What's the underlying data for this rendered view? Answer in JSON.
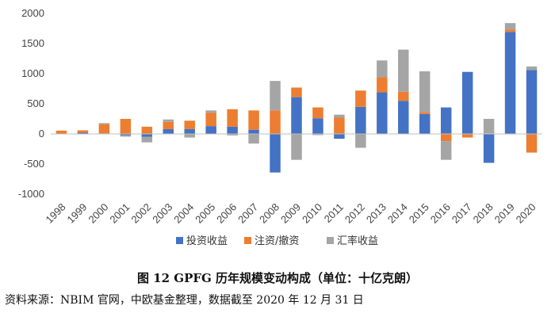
{
  "chart_data": {
    "type": "bar",
    "stacked": true,
    "title": "图 12   GPFG 历年规模变动构成（单位：十亿克朗）",
    "xlabel": "",
    "ylabel": "",
    "ylim": [
      -1000,
      2000
    ],
    "yticks": [
      -1000,
      -500,
      0,
      500,
      1000,
      1500,
      2000
    ],
    "grid": false,
    "legend_position": "bottom",
    "categories": [
      "1998",
      "1999",
      "2000",
      "2001",
      "2002",
      "2003",
      "2004",
      "2005",
      "2006",
      "2007",
      "2008",
      "2009",
      "2010",
      "2011",
      "2012",
      "2013",
      "2014",
      "2015",
      "2016",
      "2017",
      "2018",
      "2019",
      "2020"
    ],
    "series": [
      {
        "name": "投资收益",
        "color": "#4472C4",
        "values": [
          5,
          20,
          10,
          -20,
          -50,
          80,
          80,
          130,
          120,
          70,
          -640,
          610,
          260,
          -80,
          450,
          690,
          550,
          330,
          440,
          1030,
          -480,
          1690,
          1060
        ]
      },
      {
        "name": "注资/撤资",
        "color": "#ED7D31",
        "values": [
          50,
          40,
          150,
          250,
          120,
          120,
          140,
          220,
          290,
          320,
          390,
          160,
          180,
          270,
          270,
          250,
          150,
          30,
          -120,
          -60,
          10,
          40,
          -310
        ]
      },
      {
        "name": "汇率收益",
        "color": "#A5A5A5",
        "values": [
          0,
          0,
          20,
          -25,
          -90,
          40,
          -60,
          40,
          -25,
          -160,
          490,
          -430,
          -20,
          50,
          -230,
          280,
          700,
          680,
          -310,
          0,
          240,
          110,
          60
        ]
      }
    ]
  },
  "caption": "图 12   GPFG 历年规模变动构成（单位：十亿克朗）",
  "source": "资料来源：NBIM 官网，中欧基金整理，数据截至 2020 年 12 月 31 日"
}
